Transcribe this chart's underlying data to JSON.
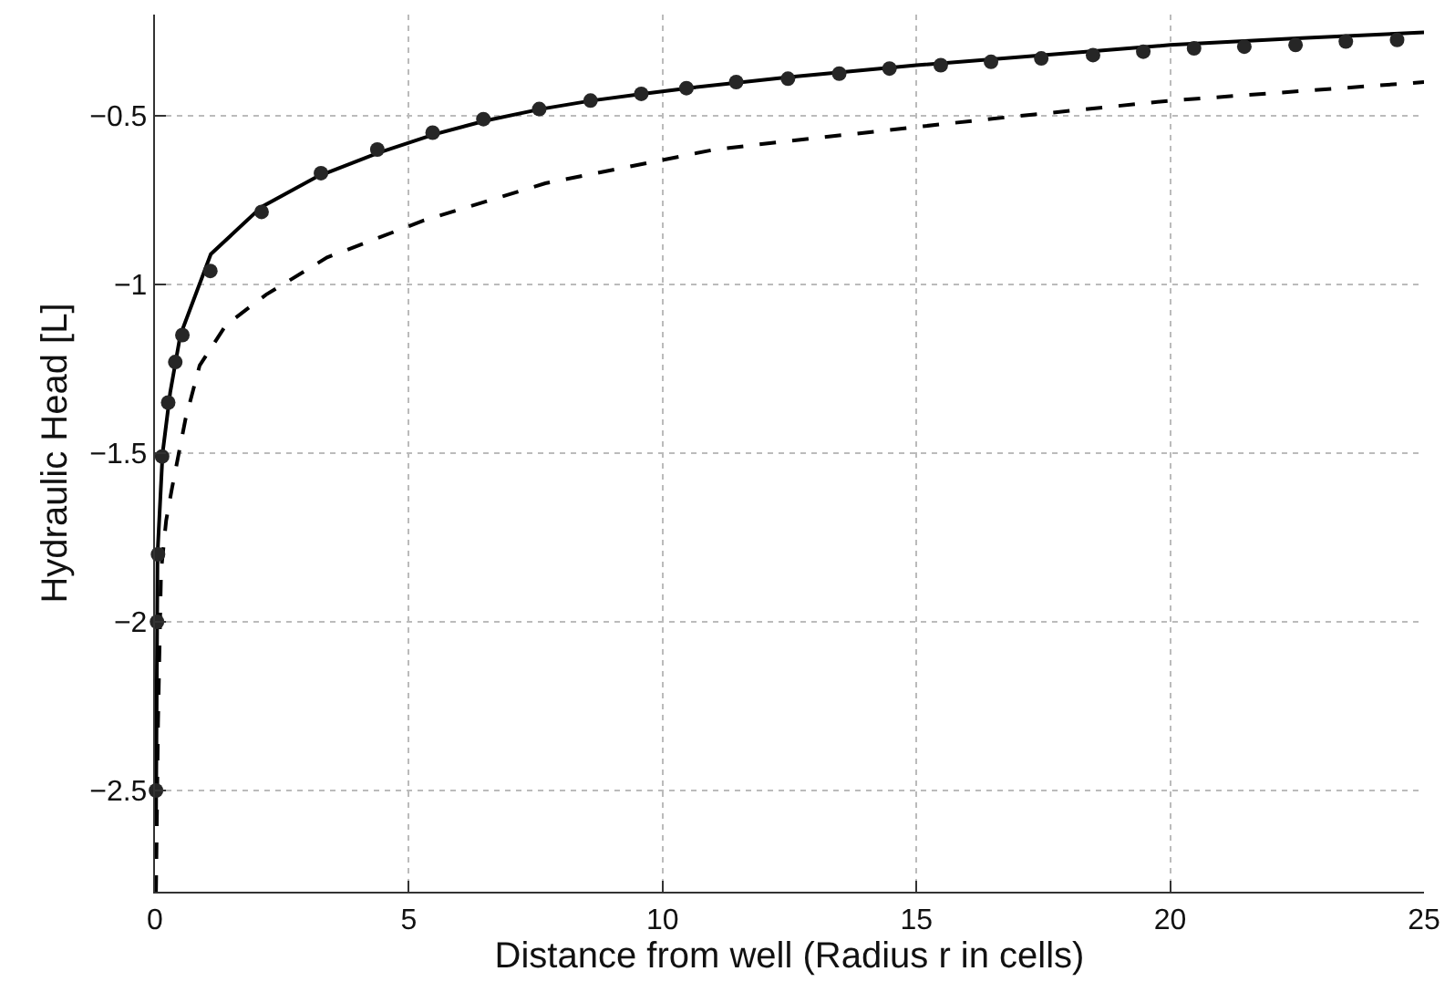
{
  "chart_data": {
    "type": "line",
    "xlabel": "Distance from well (Radius r in cells)",
    "ylabel": "Hydraulic Head [L]",
    "xlim": [
      0,
      25
    ],
    "xticks": [
      0,
      5,
      10,
      15,
      20,
      25
    ],
    "ylim": [
      -2.8,
      -0.2
    ],
    "yticks": [
      -2.5,
      -2,
      -1.5,
      -1,
      -0.5
    ],
    "grid": true,
    "series": [
      {
        "color": "#000000",
        "line_style": "solid",
        "marker": "none",
        "x": [
          0.02,
          0.05,
          0.15,
          0.3,
          0.5,
          1.1,
          2.1,
          3.2,
          4.4,
          5.5,
          6.5,
          7.6,
          8.6,
          9.6,
          10.5,
          12.5,
          15,
          17.5,
          20,
          22.5,
          25
        ],
        "values": [
          -2.6,
          -1.8,
          -1.5,
          -1.32,
          -1.15,
          -0.91,
          -0.77,
          -0.68,
          -0.61,
          -0.555,
          -0.515,
          -0.48,
          -0.455,
          -0.435,
          -0.418,
          -0.385,
          -0.35,
          -0.32,
          -0.29,
          -0.27,
          -0.253
        ]
      },
      {
        "color": "#000000",
        "line_style": "dashed",
        "marker": "none",
        "x": [
          0.02,
          0.06,
          0.12,
          0.22,
          0.34,
          0.6,
          0.88,
          1.4,
          2.19,
          3.39,
          5.3,
          7.69,
          11.03,
          12.47,
          16.41,
          20,
          25
        ],
        "values": [
          -2.8,
          -2.3,
          -1.85,
          -1.7,
          -1.6,
          -1.4,
          -1.24,
          -1.12,
          -1.03,
          -0.92,
          -0.81,
          -0.7,
          -0.6,
          -0.575,
          -0.51,
          -0.455,
          -0.4
        ]
      },
      {
        "type": "scatter",
        "color": "#262626",
        "marker": "circle",
        "x": [
          0.02,
          0.04,
          0.06,
          0.14,
          0.26,
          0.4,
          0.54,
          1.09,
          2.1,
          3.27,
          4.38,
          5.47,
          6.47,
          7.57,
          8.58,
          9.58,
          10.47,
          11.45,
          12.47,
          13.48,
          14.47,
          15.48,
          16.47,
          17.46,
          18.48,
          19.47,
          20.47,
          21.46,
          22.47,
          23.46,
          24.47
        ],
        "values": [
          -2.5,
          -2.0,
          -1.8,
          -1.51,
          -1.35,
          -1.23,
          -1.15,
          -0.96,
          -0.785,
          -0.67,
          -0.6,
          -0.55,
          -0.51,
          -0.48,
          -0.455,
          -0.435,
          -0.418,
          -0.4,
          -0.39,
          -0.375,
          -0.36,
          -0.35,
          -0.34,
          -0.33,
          -0.32,
          -0.31,
          -0.3,
          -0.295,
          -0.29,
          -0.28,
          -0.275
        ]
      }
    ]
  }
}
